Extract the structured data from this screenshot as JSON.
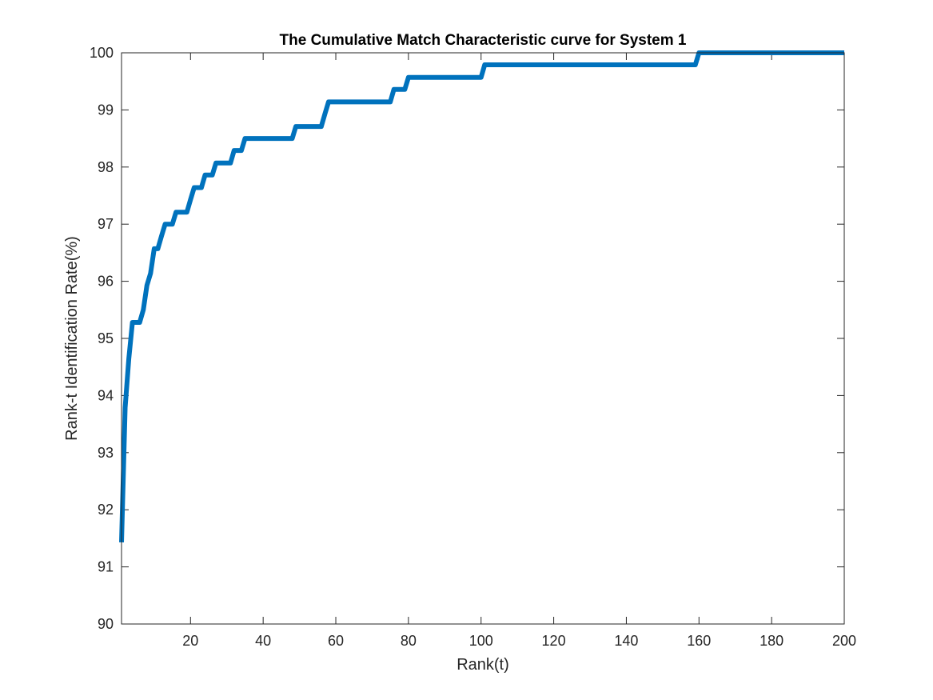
{
  "chart_data": {
    "type": "line",
    "title": "The Cumulative Match Characteristic curve for System 1",
    "xlabel": "Rank(t)",
    "ylabel": "Rank-t Identification Rate(%)",
    "xlim": [
      1,
      200
    ],
    "ylim": [
      90,
      100
    ],
    "xticks": [
      20,
      40,
      60,
      80,
      100,
      120,
      140,
      160,
      180,
      200
    ],
    "yticks": [
      90,
      91,
      92,
      93,
      94,
      95,
      96,
      97,
      98,
      99,
      100
    ],
    "grid": false,
    "legend": "none",
    "line_color": "#0072BD",
    "series": [
      {
        "x": [
          1,
          2,
          3,
          4,
          5,
          6,
          7,
          8,
          9,
          10,
          11,
          12,
          13,
          14,
          15,
          16,
          17,
          18,
          19,
          20,
          21,
          22,
          23,
          24,
          25,
          26,
          27,
          28,
          29,
          30,
          31,
          32,
          33,
          34,
          35,
          48,
          49,
          56,
          57,
          58,
          75,
          76,
          78,
          79,
          80,
          100,
          101,
          159,
          160,
          200
        ],
        "y": [
          91.43,
          93.79,
          94.64,
          95.28,
          95.28,
          95.28,
          95.5,
          95.93,
          96.14,
          96.57,
          96.57,
          96.79,
          97.0,
          97.0,
          97.0,
          97.21,
          97.21,
          97.21,
          97.21,
          97.43,
          97.64,
          97.64,
          97.64,
          97.86,
          97.86,
          97.86,
          98.07,
          98.07,
          98.07,
          98.07,
          98.07,
          98.29,
          98.29,
          98.29,
          98.5,
          98.5,
          98.71,
          98.71,
          98.93,
          99.14,
          99.14,
          99.36,
          99.36,
          99.36,
          99.57,
          99.57,
          99.79,
          99.79,
          100.0,
          100.0
        ]
      }
    ]
  }
}
